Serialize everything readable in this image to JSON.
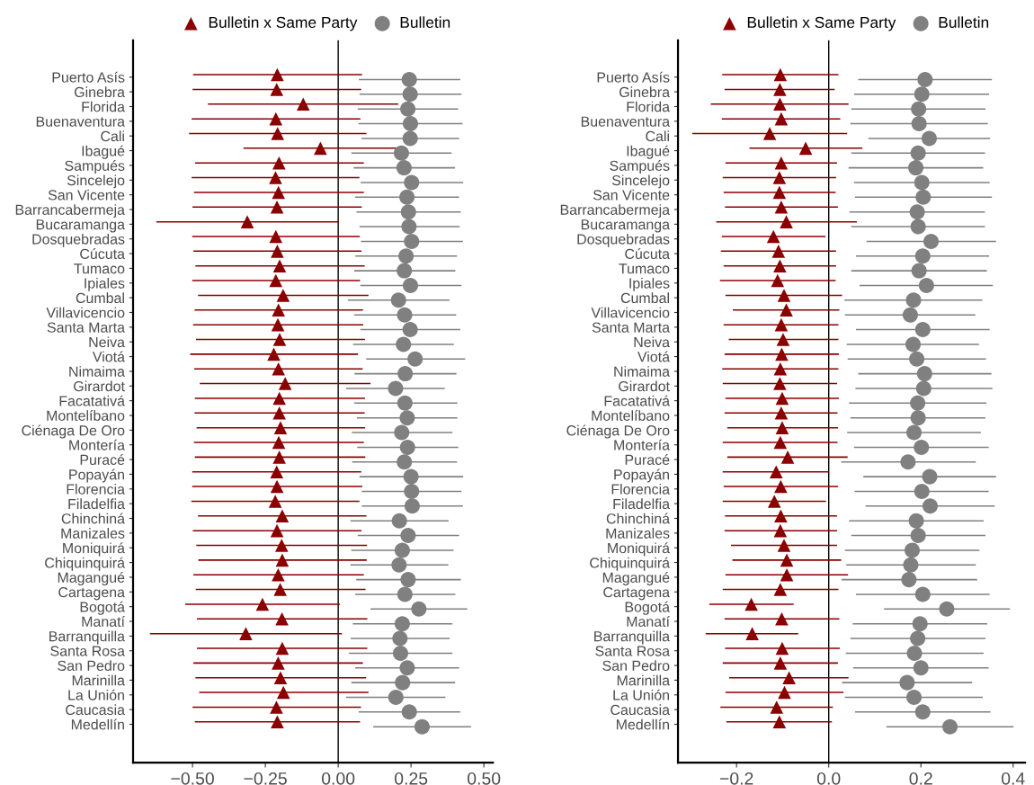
{
  "chart_data": [
    {
      "type": "scatter",
      "orientation": "horizontal",
      "legend": "top",
      "grid": false,
      "categories": [
        "Puerto Asís",
        "Ginebra",
        "Florida",
        "Buenaventura",
        "Cali",
        "Ibagué",
        "Sampués",
        "Sincelejo",
        "San Vicente",
        "Barrancabermeja",
        "Bucaramanga",
        "Dosquebradas",
        "Cúcuta",
        "Tumaco",
        "Ipiales",
        "Cumbal",
        "Villavicencio",
        "Santa Marta",
        "Neiva",
        "Viotá",
        "Nimaima",
        "Girardot",
        "Facatativá",
        "Montelíbano",
        "Ciénaga De Oro",
        "Montería",
        "Puracé",
        "Popayán",
        "Florencia",
        "Filadelfia",
        "Chinchiná",
        "Manizales",
        "Moniquirá",
        "Chiquinquirá",
        "Magangué",
        "Cartagena",
        "Bogotá",
        "Manatí",
        "Barranquilla",
        "Santa Rosa",
        "San Pedro",
        "Marinilla",
        "La Unión",
        "Caucasia",
        "Medellín"
      ],
      "xlim": [
        -0.704,
        0.531
      ],
      "xticks": [
        {
          "value": -0.5,
          "label": "−0.50"
        },
        {
          "value": -0.25,
          "label": "−0.25"
        },
        {
          "value": 0,
          "label": "0.00"
        },
        {
          "value": 0.25,
          "label": "0.25"
        },
        {
          "value": 0.5,
          "label": "0.50"
        }
      ],
      "ref_lines": [
        {
          "axis": "x",
          "value": 0,
          "color": "#000000"
        }
      ],
      "series": [
        {
          "name": "Bulletin x Same Party",
          "color": "#8b0000",
          "marker": "triangle",
          "values": [
            -0.209,
            -0.211,
            -0.12,
            -0.214,
            -0.208,
            -0.061,
            -0.203,
            -0.215,
            -0.205,
            -0.21,
            -0.312,
            -0.214,
            -0.209,
            -0.201,
            -0.214,
            -0.189,
            -0.205,
            -0.207,
            -0.201,
            -0.221,
            -0.205,
            -0.182,
            -0.202,
            -0.202,
            -0.198,
            -0.204,
            -0.202,
            -0.211,
            -0.21,
            -0.216,
            -0.192,
            -0.21,
            -0.194,
            -0.192,
            -0.206,
            -0.199,
            -0.26,
            -0.193,
            -0.317,
            -0.192,
            -0.206,
            -0.198,
            -0.188,
            -0.212,
            -0.209
          ],
          "errors": [
            [
              -0.498,
              0.082
            ],
            [
              -0.5,
              0.079
            ],
            [
              -0.447,
              0.206
            ],
            [
              -0.503,
              0.076
            ],
            [
              -0.512,
              0.097
            ],
            [
              -0.325,
              0.203
            ],
            [
              -0.491,
              0.088
            ],
            [
              -0.503,
              0.073
            ],
            [
              -0.495,
              0.088
            ],
            [
              -0.5,
              0.081
            ],
            [
              -0.624,
              0.001
            ],
            [
              -0.501,
              0.074
            ],
            [
              -0.497,
              0.08
            ],
            [
              -0.49,
              0.091
            ],
            [
              -0.501,
              0.075
            ],
            [
              -0.481,
              0.104
            ],
            [
              -0.493,
              0.085
            ],
            [
              -0.498,
              0.086
            ],
            [
              -0.488,
              0.092
            ],
            [
              -0.508,
              0.068
            ],
            [
              -0.494,
              0.084
            ],
            [
              -0.475,
              0.111
            ],
            [
              -0.492,
              0.092
            ],
            [
              -0.493,
              0.091
            ],
            [
              -0.486,
              0.092
            ],
            [
              -0.495,
              0.088
            ],
            [
              -0.492,
              0.093
            ],
            [
              -0.501,
              0.079
            ],
            [
              -0.501,
              0.083
            ],
            [
              -0.504,
              0.073
            ],
            [
              -0.481,
              0.097
            ],
            [
              -0.499,
              0.08
            ],
            [
              -0.487,
              0.099
            ],
            [
              -0.48,
              0.098
            ],
            [
              -0.497,
              0.088
            ],
            [
              -0.489,
              0.094
            ],
            [
              -0.525,
              0.006
            ],
            [
              -0.485,
              0.1
            ],
            [
              -0.646,
              0.013
            ],
            [
              -0.485,
              0.1
            ],
            [
              -0.497,
              0.085
            ],
            [
              -0.49,
              0.096
            ],
            [
              -0.477,
              0.104
            ],
            [
              -0.5,
              0.078
            ],
            [
              -0.492,
              0.075
            ]
          ]
        },
        {
          "name": "Bulletin",
          "color": "#808080",
          "marker": "circle",
          "values": [
            0.244,
            0.247,
            0.239,
            0.248,
            0.247,
            0.217,
            0.226,
            0.252,
            0.236,
            0.241,
            0.243,
            0.252,
            0.233,
            0.227,
            0.248,
            0.207,
            0.228,
            0.247,
            0.224,
            0.264,
            0.23,
            0.197,
            0.229,
            0.237,
            0.218,
            0.238,
            0.227,
            0.25,
            0.252,
            0.254,
            0.21,
            0.24,
            0.22,
            0.209,
            0.24,
            0.229,
            0.277,
            0.22,
            0.212,
            0.214,
            0.237,
            0.221,
            0.198,
            0.244,
            0.288
          ],
          "errors": [
            [
              0.071,
              0.419
            ],
            [
              0.073,
              0.423
            ],
            [
              0.067,
              0.412
            ],
            [
              0.07,
              0.427
            ],
            [
              0.08,
              0.415
            ],
            [
              0.045,
              0.389
            ],
            [
              0.053,
              0.401
            ],
            [
              0.077,
              0.429
            ],
            [
              0.058,
              0.415
            ],
            [
              0.063,
              0.421
            ],
            [
              0.073,
              0.417
            ],
            [
              0.078,
              0.428
            ],
            [
              0.059,
              0.408
            ],
            [
              0.055,
              0.402
            ],
            [
              0.076,
              0.423
            ],
            [
              0.033,
              0.382
            ],
            [
              0.055,
              0.405
            ],
            [
              0.076,
              0.419
            ],
            [
              0.051,
              0.397
            ],
            [
              0.096,
              0.436
            ],
            [
              0.056,
              0.406
            ],
            [
              0.027,
              0.366
            ],
            [
              0.055,
              0.409
            ],
            [
              0.064,
              0.409
            ],
            [
              0.047,
              0.392
            ],
            [
              0.065,
              0.412
            ],
            [
              0.048,
              0.408
            ],
            [
              0.073,
              0.429
            ],
            [
              0.081,
              0.423
            ],
            [
              0.081,
              0.428
            ],
            [
              0.042,
              0.379
            ],
            [
              0.067,
              0.415
            ],
            [
              0.045,
              0.396
            ],
            [
              0.042,
              0.378
            ],
            [
              0.062,
              0.421
            ],
            [
              0.058,
              0.402
            ],
            [
              0.111,
              0.443
            ],
            [
              0.05,
              0.392
            ],
            [
              0.043,
              0.383
            ],
            [
              0.037,
              0.392
            ],
            [
              0.058,
              0.415
            ],
            [
              0.045,
              0.401
            ],
            [
              0.027,
              0.368
            ],
            [
              0.07,
              0.419
            ],
            [
              0.12,
              0.456
            ]
          ]
        }
      ]
    },
    {
      "type": "scatter",
      "orientation": "horizontal",
      "legend": "top",
      "grid": false,
      "categories": [
        "Puerto Asís",
        "Ginebra",
        "Florida",
        "Buenaventura",
        "Cali",
        "Ibagué",
        "Sampués",
        "Sincelejo",
        "San Vicente",
        "Barrancabermeja",
        "Bucaramanga",
        "Dosquebradas",
        "Cúcuta",
        "Tumaco",
        "Ipiales",
        "Cumbal",
        "Villavicencio",
        "Santa Marta",
        "Neiva",
        "Viotá",
        "Nimaima",
        "Girardot",
        "Facatativá",
        "Montelíbano",
        "Ciénaga De Oro",
        "Montería",
        "Puracé",
        "Popayán",
        "Florencia",
        "Filadelfia",
        "Chinchiná",
        "Manizales",
        "Moniquirá",
        "Chiquinquirá",
        "Magangué",
        "Cartagena",
        "Bogotá",
        "Manatí",
        "Barranquilla",
        "Santa Rosa",
        "San Pedro",
        "Marinilla",
        "La Unión",
        "Caucasia",
        "Medellín"
      ],
      "xlim": [
        -0.327,
        0.426
      ],
      "xticks": [
        {
          "value": -0.2,
          "label": "−0.2"
        },
        {
          "value": 0,
          "label": "0.0"
        },
        {
          "value": 0.2,
          "label": "0.2"
        },
        {
          "value": 0.4,
          "label": "0.4"
        }
      ],
      "ref_lines": [
        {
          "axis": "x",
          "value": 0,
          "color": "#000000"
        }
      ],
      "series": [
        {
          "name": "Bulletin x Same Party",
          "color": "#8b0000",
          "marker": "triangle",
          "values": [
            -0.105,
            -0.106,
            -0.106,
            -0.103,
            -0.128,
            -0.05,
            -0.103,
            -0.107,
            -0.107,
            -0.103,
            -0.092,
            -0.12,
            -0.109,
            -0.106,
            -0.111,
            -0.097,
            -0.092,
            -0.103,
            -0.099,
            -0.102,
            -0.105,
            -0.106,
            -0.101,
            -0.103,
            -0.101,
            -0.105,
            -0.089,
            -0.114,
            -0.104,
            -0.118,
            -0.104,
            -0.105,
            -0.097,
            -0.091,
            -0.091,
            -0.105,
            -0.168,
            -0.102,
            -0.166,
            -0.101,
            -0.105,
            -0.086,
            -0.096,
            -0.113,
            -0.107
          ],
          "errors": [
            [
              -0.231,
              0.021
            ],
            [
              -0.226,
              0.013
            ],
            [
              -0.256,
              0.043
            ],
            [
              -0.232,
              0.025
            ],
            [
              -0.296,
              0.04
            ],
            [
              -0.172,
              0.073
            ],
            [
              -0.224,
              0.018
            ],
            [
              -0.23,
              0.016
            ],
            [
              -0.228,
              0.015
            ],
            [
              -0.225,
              0.02
            ],
            [
              -0.244,
              0.061
            ],
            [
              -0.232,
              -0.007
            ],
            [
              -0.234,
              0.016
            ],
            [
              -0.228,
              0.016
            ],
            [
              -0.236,
              0.015
            ],
            [
              -0.224,
              0.029
            ],
            [
              -0.208,
              0.023
            ],
            [
              -0.228,
              0.021
            ],
            [
              -0.217,
              0.021
            ],
            [
              -0.226,
              0.022
            ],
            [
              -0.231,
              0.021
            ],
            [
              -0.23,
              0.018
            ],
            [
              -0.224,
              0.022
            ],
            [
              -0.226,
              0.019
            ],
            [
              -0.22,
              0.02
            ],
            [
              -0.23,
              0.019
            ],
            [
              -0.22,
              0.041
            ],
            [
              -0.23,
              0.0
            ],
            [
              -0.228,
              0.02
            ],
            [
              -0.23,
              -0.006
            ],
            [
              -0.225,
              0.018
            ],
            [
              -0.226,
              0.018
            ],
            [
              -0.212,
              0.018
            ],
            [
              -0.209,
              0.027
            ],
            [
              -0.224,
              0.042
            ],
            [
              -0.23,
              0.021
            ],
            [
              -0.259,
              -0.076
            ],
            [
              -0.226,
              0.023
            ],
            [
              -0.267,
              -0.066
            ],
            [
              -0.225,
              0.024
            ],
            [
              -0.23,
              0.02
            ],
            [
              -0.216,
              0.043
            ],
            [
              -0.224,
              0.032
            ],
            [
              -0.235,
              0.009
            ],
            [
              -0.222,
              0.007
            ]
          ]
        },
        {
          "name": "Bulletin",
          "color": "#808080",
          "marker": "circle",
          "values": [
            0.209,
            0.202,
            0.195,
            0.196,
            0.218,
            0.194,
            0.189,
            0.202,
            0.205,
            0.192,
            0.194,
            0.222,
            0.204,
            0.196,
            0.212,
            0.184,
            0.177,
            0.204,
            0.183,
            0.191,
            0.208,
            0.206,
            0.193,
            0.194,
            0.185,
            0.201,
            0.172,
            0.219,
            0.202,
            0.22,
            0.19,
            0.194,
            0.181,
            0.178,
            0.174,
            0.204,
            0.256,
            0.198,
            0.193,
            0.186,
            0.2,
            0.17,
            0.185,
            0.204,
            0.263
          ],
          "errors": [
            [
              0.064,
              0.354
            ],
            [
              0.055,
              0.348
            ],
            [
              0.049,
              0.34
            ],
            [
              0.047,
              0.345
            ],
            [
              0.086,
              0.35
            ],
            [
              0.049,
              0.339
            ],
            [
              0.043,
              0.335
            ],
            [
              0.055,
              0.349
            ],
            [
              0.057,
              0.354
            ],
            [
              0.045,
              0.339
            ],
            [
              0.049,
              0.339
            ],
            [
              0.082,
              0.363
            ],
            [
              0.059,
              0.348
            ],
            [
              0.049,
              0.343
            ],
            [
              0.067,
              0.356
            ],
            [
              0.034,
              0.333
            ],
            [
              0.035,
              0.318
            ],
            [
              0.059,
              0.349
            ],
            [
              0.039,
              0.326
            ],
            [
              0.041,
              0.341
            ],
            [
              0.064,
              0.353
            ],
            [
              0.058,
              0.355
            ],
            [
              0.044,
              0.342
            ],
            [
              0.047,
              0.34
            ],
            [
              0.04,
              0.33
            ],
            [
              0.055,
              0.347
            ],
            [
              0.027,
              0.319
            ],
            [
              0.075,
              0.363
            ],
            [
              0.056,
              0.347
            ],
            [
              0.08,
              0.36
            ],
            [
              0.044,
              0.336
            ],
            [
              0.049,
              0.34
            ],
            [
              0.035,
              0.327
            ],
            [
              0.038,
              0.319
            ],
            [
              0.028,
              0.322
            ],
            [
              0.059,
              0.349
            ],
            [
              0.12,
              0.393
            ],
            [
              0.052,
              0.344
            ],
            [
              0.047,
              0.34
            ],
            [
              0.037,
              0.336
            ],
            [
              0.053,
              0.347
            ],
            [
              0.029,
              0.311
            ],
            [
              0.035,
              0.334
            ],
            [
              0.057,
              0.351
            ],
            [
              0.125,
              0.401
            ]
          ]
        }
      ]
    }
  ]
}
